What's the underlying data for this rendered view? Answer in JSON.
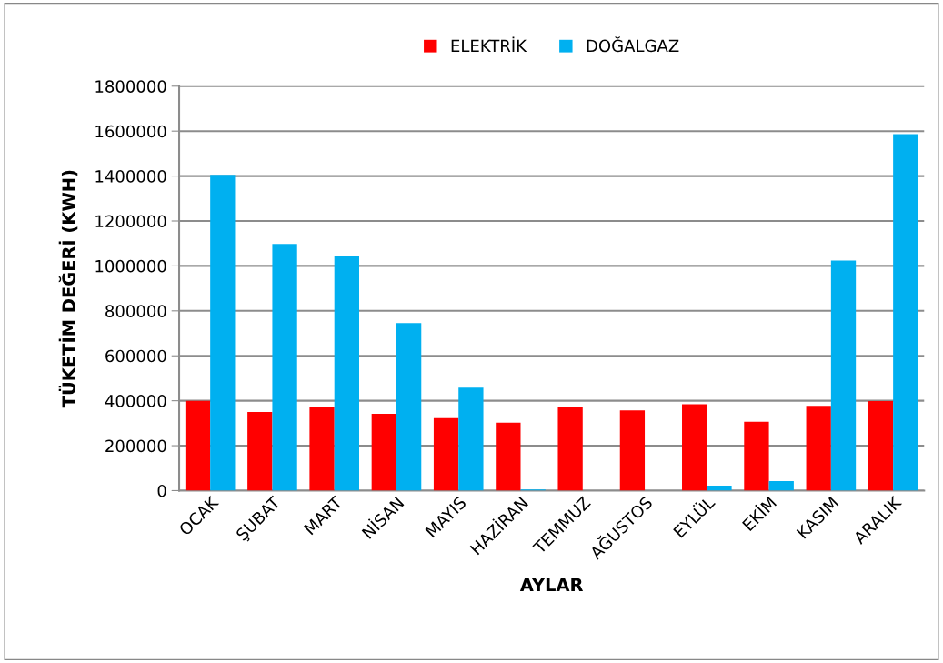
{
  "chart_data": {
    "type": "bar",
    "xlabel": "AYLAR",
    "ylabel": "TÜKETİM DEĞERİ (KWH)",
    "categories": [
      "OCAK",
      "ŞUBAT",
      "MART",
      "NİSAN",
      "MAYIS",
      "HAZİRAN",
      "TEMMUZ",
      "AĞUSTOS",
      "EYLÜL",
      "EKİM",
      "KASIM",
      "ARALIK"
    ],
    "series": [
      {
        "name": "ELEKTRİK",
        "color": "#ff0000",
        "values": [
          400000,
          350000,
          370000,
          342000,
          323000,
          302000,
          373000,
          357000,
          384000,
          306000,
          377000,
          399000
        ]
      },
      {
        "name": "DOĞALGAZ",
        "color": "#00b0f0",
        "values": [
          1405000,
          1098000,
          1044000,
          746000,
          458000,
          5000,
          0,
          0,
          22000,
          42000,
          1024000,
          1587000
        ]
      }
    ],
    "ylim": [
      0,
      1800000
    ],
    "yticks": [
      0,
      200000,
      400000,
      600000,
      800000,
      1000000,
      1200000,
      1400000,
      1600000,
      1800000
    ],
    "grid": "y",
    "legend": "top"
  }
}
